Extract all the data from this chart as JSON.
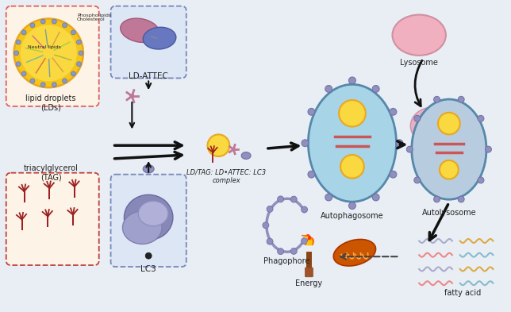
{
  "fig_bg": "#e8eef4",
  "labels": {
    "lipid_droplets": "lipid droplets\n(LDs)",
    "tag": "triacylglycerol\n(TAG)",
    "ld_attec": "LD-ATTEC",
    "lc3": "LC3",
    "complex": "LD/TAG: LD•ATTEC: LC3\ncomplex",
    "phagophore": "Phagophore",
    "autophagosome": "Autophagosome",
    "lysosome": "Lysosome",
    "autolysosome": "Autolysosome",
    "energy": "Energy",
    "fatty_acid": "fatty acid"
  },
  "colors": {
    "ld_box_bg": "#fdf3e7",
    "ld_box_border": "#e06060",
    "tag_box_bg": "#fdf3e7",
    "tag_box_border": "#c04040",
    "attec_box_bg": "#dde6f5",
    "attec_box_border": "#7788bb",
    "lc3_box_bg": "#dde6f5",
    "lc3_box_border": "#7788bb",
    "autophagosome_fill": "#a8d4e8",
    "autophagosome_border": "#5588aa",
    "lysosome_fill": "#f0b0c0",
    "autolysosome_fill": "#b8cce0",
    "tag_color": "#9b2020",
    "lc3_dot_color": "#8888bb",
    "fatty_acid_colors": [
      "#aaaacc",
      "#ddaa44",
      "#ee8888",
      "#88bbcc"
    ]
  }
}
